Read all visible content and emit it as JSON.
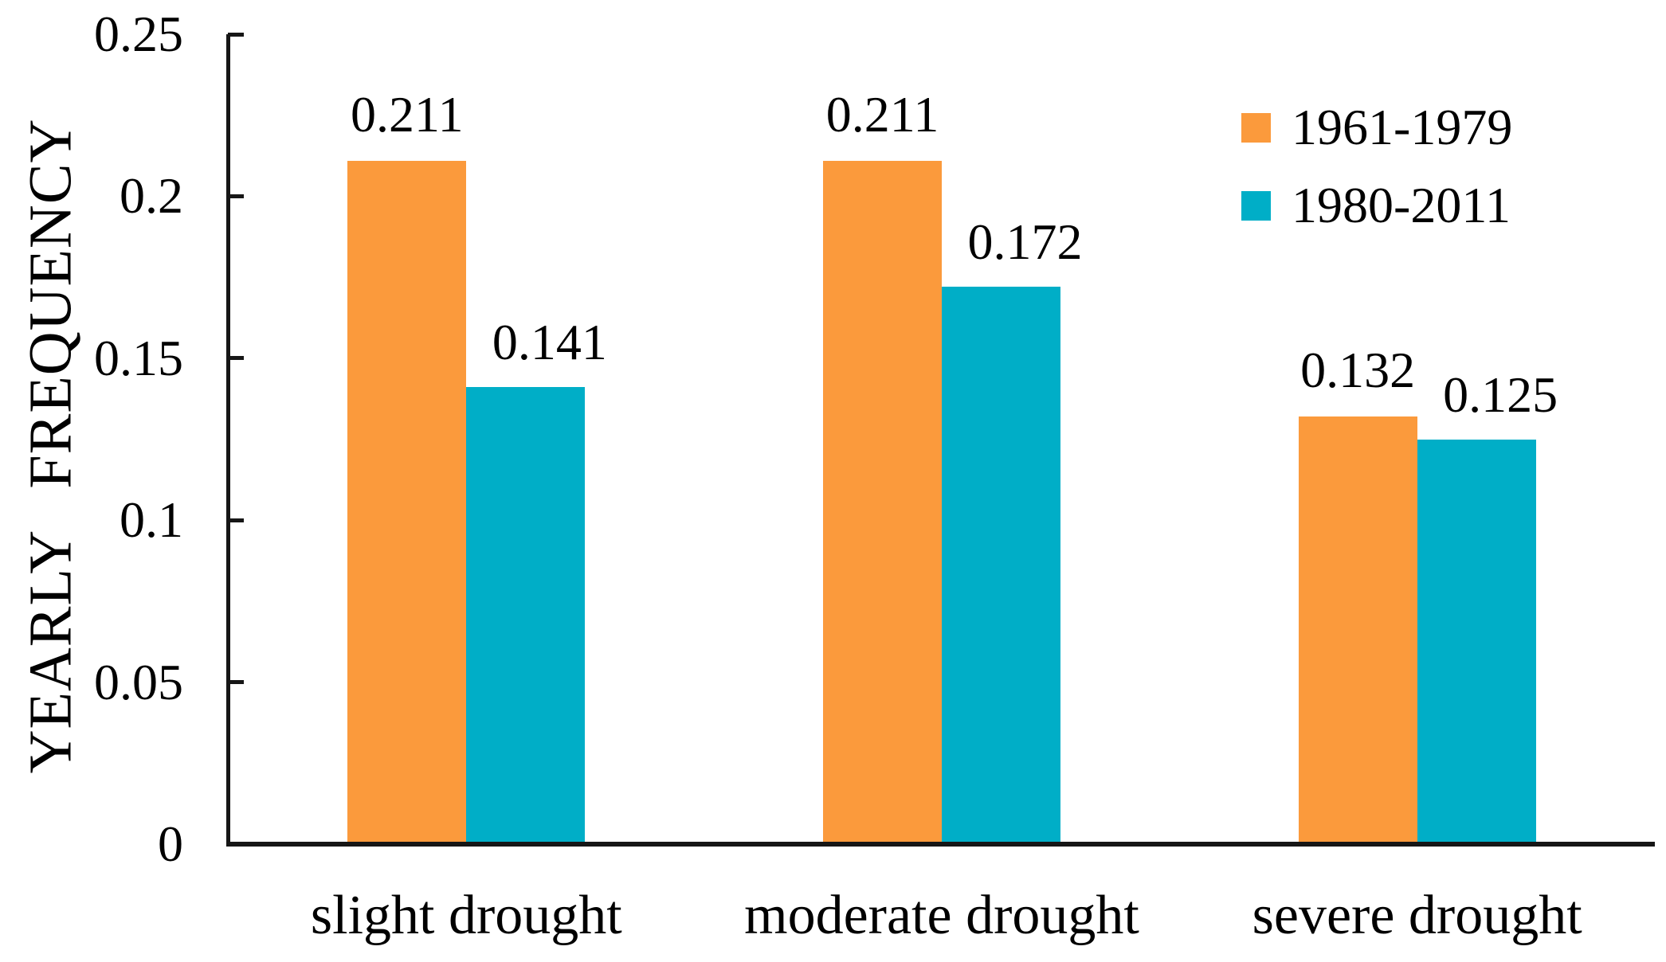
{
  "chart_data": {
    "type": "bar",
    "title": "",
    "categories": [
      "slight drought",
      "moderate drought",
      "severe drought"
    ],
    "series": [
      {
        "name": "1961-1979",
        "color": "#FB9A3C",
        "values": [
          0.211,
          0.211,
          0.132
        ],
        "data_labels": [
          "0.211",
          "0.211",
          "0.132"
        ]
      },
      {
        "name": "1980-2011",
        "color": "#00AEC7",
        "values": [
          0.141,
          0.172,
          0.125
        ],
        "data_labels": [
          "0.141",
          "0.172",
          "0.125"
        ]
      }
    ],
    "xlabel": "",
    "ylabel": "YEARLY FREQUENCY",
    "ylim": [
      0,
      0.25
    ],
    "yticks": [
      0,
      0.05,
      0.1,
      0.15,
      0.2,
      0.25
    ],
    "ytick_labels": [
      "0",
      "0.05",
      "0.1",
      "0.15",
      "0.2",
      "0.25"
    ],
    "grid": false,
    "legend_position": "top-right",
    "axis_color": "#000000",
    "background_color": "#FFFFFF"
  }
}
